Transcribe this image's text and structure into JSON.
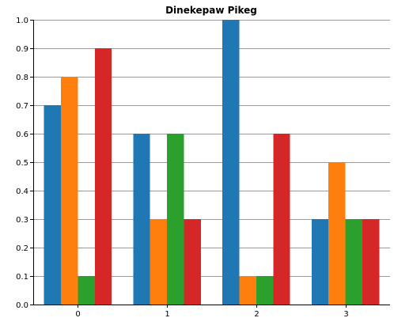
{
  "chart_data": {
    "type": "bar",
    "title": "Dinekepaw Pikeg",
    "xlabel": "",
    "ylabel": "",
    "categories": [
      "0",
      "1",
      "2",
      "3"
    ],
    "ylim": [
      0,
      1.0
    ],
    "yticks": [
      "0.0",
      "0.1",
      "0.2",
      "0.3",
      "0.4",
      "0.5",
      "0.6",
      "0.7",
      "0.8",
      "0.9",
      "1.0"
    ],
    "grid": true,
    "legend": "none",
    "series": [
      {
        "color": "#1f77b4",
        "values": [
          0.7,
          0.6,
          1.0,
          0.3
        ]
      },
      {
        "color": "#ff7f0e",
        "values": [
          0.8,
          0.3,
          0.1,
          0.5
        ]
      },
      {
        "color": "#2ca02c",
        "values": [
          0.1,
          0.6,
          0.1,
          0.3
        ]
      },
      {
        "color": "#d62728",
        "values": [
          0.9,
          0.3,
          0.6,
          0.3
        ]
      }
    ]
  }
}
